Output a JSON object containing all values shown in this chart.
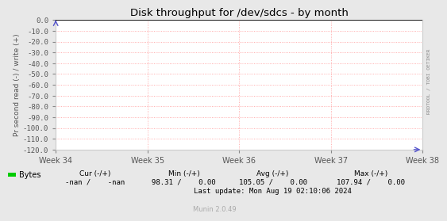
{
  "title": "Disk throughput for /dev/sdcs - by month",
  "ylabel": "Pr second read (-) / write (+)",
  "bg_color": "#e8e8e8",
  "plot_bg_color": "#ffffff",
  "grid_color": "#ff9999",
  "border_color": "#cccccc",
  "ylim": [
    -120.0,
    0.0
  ],
  "yticks": [
    0.0,
    -10.0,
    -20.0,
    -30.0,
    -40.0,
    -50.0,
    -60.0,
    -70.0,
    -80.0,
    -90.0,
    -100.0,
    -110.0,
    -120.0
  ],
  "xtick_labels": [
    "Week 34",
    "Week 35",
    "Week 36",
    "Week 37",
    "Week 38"
  ],
  "legend_label": "Bytes",
  "legend_color": "#00cc00",
  "cur_label": "Cur (-/+)",
  "cur_value": "-nan /    -nan",
  "min_label": "Min (-/+)",
  "min_value": "98.31 /    0.00",
  "avg_label": "Avg (-/+)",
  "avg_value": "105.05 /    0.00",
  "max_label": "Max (-/+)",
  "max_value": "107.94 /    0.00",
  "last_update": "Last update: Mon Aug 19 02:10:06 2024",
  "munin_label": "Munin 2.0.49",
  "right_label": "RRDTOOL / TOBI OETIKER",
  "arrow_color": "#5555cc",
  "data_line_color": "#000000"
}
